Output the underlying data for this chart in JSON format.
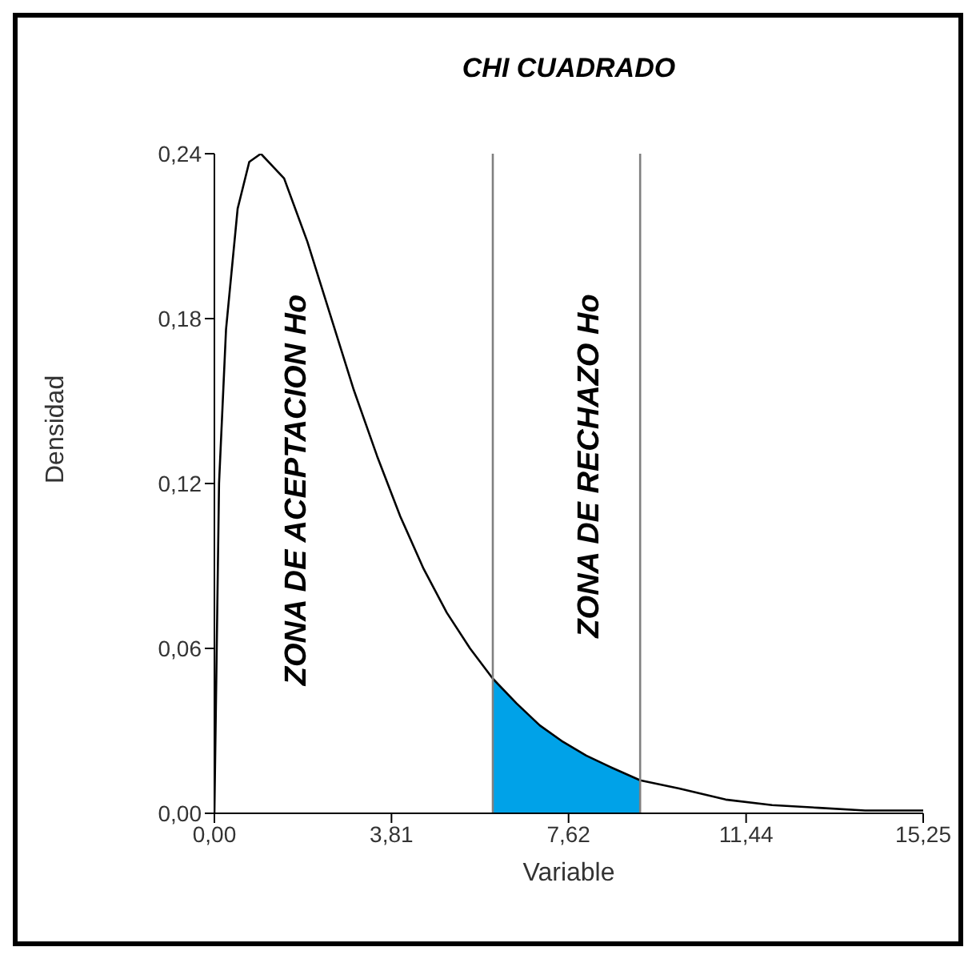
{
  "chart_data": {
    "type": "line",
    "title": "CHI CUADRADO",
    "xlabel": "Variable",
    "ylabel": "Densidad",
    "xlim": [
      0,
      15.25
    ],
    "xticks": [
      {
        "value": 0,
        "label": "0,00"
      },
      {
        "value": 3.81,
        "label": "3,81"
      },
      {
        "value": 7.62,
        "label": "7,62"
      },
      {
        "value": 11.44,
        "label": "11,44"
      },
      {
        "value": 15.25,
        "label": "15,25"
      }
    ],
    "ylim": [
      0,
      0.24
    ],
    "yticks": [
      {
        "value": 0,
        "label": "0,00"
      },
      {
        "value": 0.06,
        "label": "0,06"
      },
      {
        "value": 0.12,
        "label": "0,12"
      },
      {
        "value": 0.18,
        "label": "0,18"
      },
      {
        "value": 0.24,
        "label": "0,24"
      }
    ],
    "grid": false,
    "marker": "none",
    "line_style": "solid",
    "series": [
      {
        "type": "area",
        "color": "#00a2e8",
        "x": [
          5.99,
          6.5,
          7,
          7.5,
          8,
          8.5,
          9.16
        ],
        "values": [
          0.049,
          0.04,
          0.032,
          0.026,
          0.021,
          0.017,
          0.012
        ]
      },
      {
        "color": "#000000",
        "x": [
          0,
          0.1,
          0.25,
          0.5,
          0.75,
          1,
          1.5,
          2,
          2.5,
          3,
          3.5,
          4,
          4.5,
          5,
          5.5,
          5.99,
          6.5,
          7,
          7.5,
          8,
          8.5,
          9.16,
          10,
          11,
          12,
          13,
          14,
          15.25
        ],
        "values": [
          0,
          0.12,
          0.176,
          0.22,
          0.237,
          0.24,
          0.231,
          0.208,
          0.181,
          0.154,
          0.13,
          0.108,
          0.089,
          0.073,
          0.06,
          0.049,
          0.04,
          0.032,
          0.026,
          0.021,
          0.017,
          0.012,
          0.009,
          0.005,
          0.003,
          0.002,
          0.001,
          0.001
        ]
      }
    ],
    "ref_lines": [
      {
        "axis": "x",
        "value": 5.99,
        "color": "#808080"
      },
      {
        "axis": "x",
        "value": 9.16,
        "color": "#808080"
      }
    ],
    "annotations": [
      "ZONA DE ACEPTACION Ho",
      "ZONA DE RECHAZO Ho"
    ]
  }
}
